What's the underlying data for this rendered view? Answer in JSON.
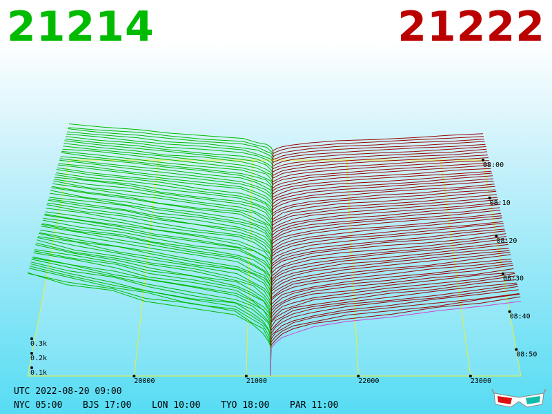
{
  "header": {
    "bid_price": "21214",
    "ask_price": "21222",
    "bid_color": "#00bb00",
    "ask_color": "#bb0000"
  },
  "footer": {
    "utc_label": "UTC 2022-08-20 09:00",
    "zones": [
      "NYC 05:00",
      "BJS 17:00",
      "LON 10:00",
      "TYO 18:00",
      "PAR 11:00"
    ]
  },
  "icons": {
    "glasses": "3d-glasses-icon"
  },
  "chart_data": {
    "type": "area",
    "kind": "3d order book depth over time",
    "x_ticks": [
      "20000",
      "21000",
      "22000",
      "23000"
    ],
    "z_ticks": [
      "0.1k",
      "0.2k",
      "0.3k"
    ],
    "time_ticks": [
      "08:00",
      "08:10",
      "08:20",
      "08:30",
      "08:40",
      "08:50"
    ],
    "colors": {
      "bids": "#00bb00",
      "asks": "#990000",
      "latest": "#cc44cc",
      "grid": "#eeee33"
    }
  }
}
